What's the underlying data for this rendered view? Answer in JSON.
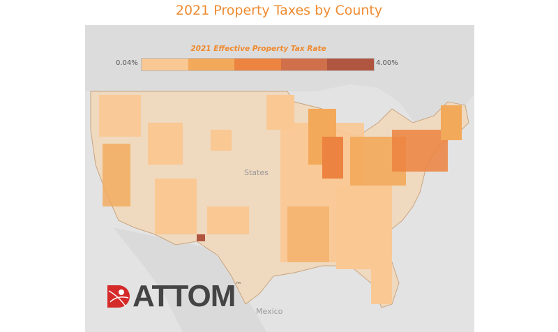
{
  "title": "2021 Property Taxes by County",
  "legend": {
    "title": "2021 Effective Property Tax Rate",
    "min_label": "0.04%",
    "max_label": "4.00%",
    "colors": [
      "#f9c893",
      "#f2a95a",
      "#ec8340",
      "#d0704a",
      "#b0553f"
    ]
  },
  "map_labels": {
    "country_us": "States",
    "country_mx": "Mexico"
  },
  "logo": {
    "text": "ATTOM",
    "trademark": "™"
  }
}
